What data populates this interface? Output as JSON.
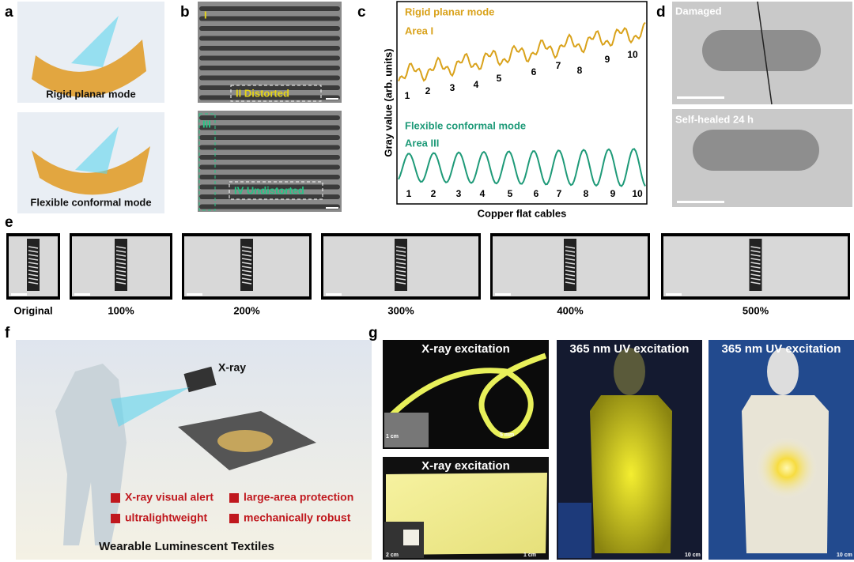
{
  "panels": {
    "a": {
      "label": "a",
      "captions": [
        "Rigid planar mode",
        "Flexible conformal mode"
      ]
    },
    "b": {
      "label": "b",
      "regions": [
        "I",
        "II  Distorted",
        "III",
        "IV Undistorted"
      ]
    },
    "c": {
      "label": "c",
      "y_axis_label": "Gray value (arb. units)",
      "x_axis_label": "Copper flat cables",
      "top_legend": [
        "Rigid planar mode",
        "Area I"
      ],
      "top_peaks": [
        "1",
        "2",
        "3",
        "4",
        "5",
        "6",
        "7",
        "8",
        "9",
        "10"
      ],
      "bottom_legend": [
        "Flexible conformal mode",
        "Area III"
      ],
      "bottom_peaks": [
        "1",
        "2",
        "3",
        "4",
        "5",
        "6",
        "7",
        "8",
        "9",
        "10"
      ]
    },
    "d": {
      "label": "d",
      "captions": [
        "Damaged",
        "Self-healed 24 h"
      ]
    },
    "e": {
      "label": "e",
      "captions": [
        "Original",
        "100%",
        "200%",
        "300%",
        "400%",
        "500%"
      ]
    },
    "f": {
      "label": "f",
      "source": "X-ray",
      "features": [
        "X-ray visual alert",
        "large-area protection",
        "ultralightweight",
        "mechanically robust"
      ],
      "caption": "Wearable Luminescent Textiles"
    },
    "g": {
      "label": "g",
      "titles": [
        "X-ray excitation",
        "X-ray excitation",
        "365 nm UV excitation",
        "365 nm UV excitation"
      ],
      "scale_bars": [
        "1 cm",
        "5 mm",
        "2 cm",
        "1 cm",
        "10 cm",
        "10 cm"
      ]
    }
  }
}
